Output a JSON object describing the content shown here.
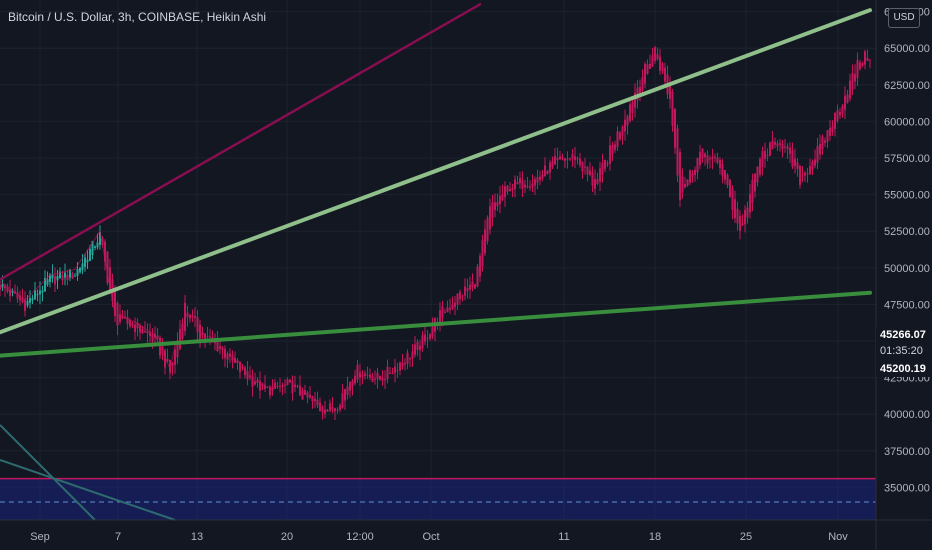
{
  "header": {
    "title": "Bitcoin / U.S. Dollar, 3h, COINBASE, Heikin Ashi",
    "currency_button": "USD"
  },
  "price_axis": {
    "close_tag": "45266.07",
    "countdown_tag": "01:35:20",
    "last_tag": "45200.19"
  },
  "colors": {
    "background": "#131722",
    "bull": "#26a69a",
    "bear": "#c2185b",
    "trend_light": "#8fbf8a",
    "trend_dark": "#388e3c",
    "channel": "#880e4f",
    "zone_fill": "#1a237e",
    "zone_border": "#c2185b"
  },
  "chart_data": {
    "type": "candlestick",
    "title": "Bitcoin / U.S. Dollar, 3h, COINBASE, Heikin Ashi",
    "y_axis_ticks": [
      "67500.00",
      "65000.00",
      "62500.00",
      "60000.00",
      "57500.00",
      "55000.00",
      "52500.00",
      "50000.00",
      "47500.00",
      "45000.00",
      "42500.00",
      "40000.00",
      "37500.00",
      "35000.00"
    ],
    "x_axis_ticks": [
      "Sep",
      "7",
      "13",
      "20",
      "12:00",
      "Oct",
      "11",
      "18",
      "25",
      "Nov"
    ],
    "ylim": [
      32500,
      68500
    ],
    "bullish_segment_end_index": 40,
    "close_anchors": [
      {
        "i": 0,
        "v": 48800
      },
      {
        "i": 10,
        "v": 47500
      },
      {
        "i": 20,
        "v": 49200
      },
      {
        "i": 30,
        "v": 49600
      },
      {
        "i": 40,
        "v": 52200
      },
      {
        "i": 46,
        "v": 46500
      },
      {
        "i": 54,
        "v": 46000
      },
      {
        "i": 62,
        "v": 45100
      },
      {
        "i": 68,
        "v": 42800
      },
      {
        "i": 74,
        "v": 47400
      },
      {
        "i": 80,
        "v": 45500
      },
      {
        "i": 88,
        "v": 44500
      },
      {
        "i": 96,
        "v": 43000
      },
      {
        "i": 106,
        "v": 41600
      },
      {
        "i": 116,
        "v": 42000
      },
      {
        "i": 128,
        "v": 40400
      },
      {
        "i": 134,
        "v": 40400
      },
      {
        "i": 142,
        "v": 43000
      },
      {
        "i": 152,
        "v": 42400
      },
      {
        "i": 160,
        "v": 43500
      },
      {
        "i": 168,
        "v": 44700
      },
      {
        "i": 176,
        "v": 46800
      },
      {
        "i": 184,
        "v": 48200
      },
      {
        "i": 190,
        "v": 49000
      },
      {
        "i": 196,
        "v": 54000
      },
      {
        "i": 204,
        "v": 55600
      },
      {
        "i": 214,
        "v": 56000
      },
      {
        "i": 222,
        "v": 57200
      },
      {
        "i": 230,
        "v": 57600
      },
      {
        "i": 238,
        "v": 55600
      },
      {
        "i": 248,
        "v": 59500
      },
      {
        "i": 256,
        "v": 62800
      },
      {
        "i": 262,
        "v": 64900
      },
      {
        "i": 268,
        "v": 61500
      },
      {
        "i": 272,
        "v": 55000
      },
      {
        "i": 280,
        "v": 57800
      },
      {
        "i": 288,
        "v": 57000
      },
      {
        "i": 296,
        "v": 52500
      },
      {
        "i": 304,
        "v": 57500
      },
      {
        "i": 312,
        "v": 58800
      },
      {
        "i": 320,
        "v": 56000
      },
      {
        "i": 328,
        "v": 58200
      },
      {
        "i": 336,
        "v": 61000
      },
      {
        "i": 344,
        "v": 64200
      },
      {
        "i": 348,
        "v": 64500
      }
    ],
    "trendlines": [
      {
        "name": "upper-channel",
        "p1": {
          "i": 0,
          "v": 49200
        },
        "p2": {
          "i": 192,
          "v": 68000
        }
      },
      {
        "name": "rising-trend-light",
        "p1": {
          "i": 0,
          "v": 45600
        },
        "p2": {
          "i": 348,
          "v": 67600
        }
      },
      {
        "name": "rising-trend-dark",
        "p1": {
          "i": 0,
          "v": 44000
        },
        "p2": {
          "i": 348,
          "v": 48300
        }
      }
    ],
    "zone": {
      "top": 35600,
      "bottom": 32500,
      "dashed_level": 34000
    },
    "grid": true,
    "legend": "none"
  }
}
